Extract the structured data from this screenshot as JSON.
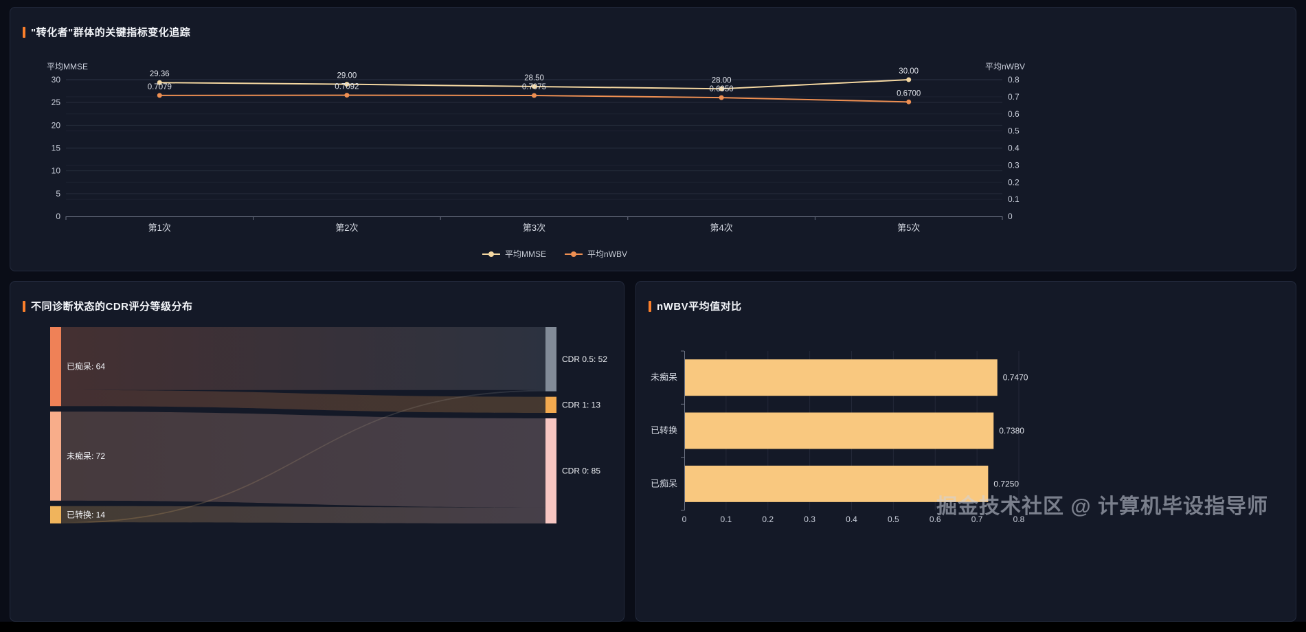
{
  "page": {
    "watermark": "掘金技术社区 @ 计算机毕设指导师",
    "accent_color": "#fb7f2b",
    "background_color": "#0a0d17",
    "panel_color": "#141927"
  },
  "chart_data": [
    {
      "type": "line",
      "title": "\"转化者\"群体的关键指标变化追踪",
      "categories": [
        "第1次",
        "第2次",
        "第3次",
        "第4次",
        "第5次"
      ],
      "series": [
        {
          "name": "平均MMSE",
          "axis": "left",
          "color": "#f4d7a1",
          "values": [
            29.36,
            29.0,
            28.5,
            28.0,
            30.0
          ],
          "labels": [
            "29.36",
            "29.00",
            "28.50",
            "28.00",
            "30.00"
          ]
        },
        {
          "name": "平均nWBV",
          "axis": "right",
          "color": "#ee8f52",
          "values": [
            0.7079,
            0.7092,
            0.7075,
            0.695,
            0.67
          ],
          "labels": [
            "0.7079",
            "0.7092",
            "0.7075",
            "0.6950",
            "0.6700"
          ]
        }
      ],
      "left_axis": {
        "name": "平均MMSE",
        "min": 0,
        "max": 30,
        "ticks": [
          0,
          5,
          10,
          15,
          20,
          25,
          30
        ]
      },
      "right_axis": {
        "name": "平均nWBV",
        "min": 0,
        "max": 0.8,
        "ticks": [
          0,
          0.1,
          0.2,
          0.3,
          0.4,
          0.5,
          0.6,
          0.7,
          0.8
        ]
      },
      "legend": [
        "平均MMSE",
        "平均nWBV"
      ],
      "legend_position": "bottom-center",
      "grid": true
    },
    {
      "type": "sankey",
      "title": "不同诊断状态的CDR评分等级分布",
      "nodes": [
        {
          "name": "已痴呆",
          "label": "已痴呆: 64",
          "value": 64,
          "column": "left",
          "color": "#ef8157"
        },
        {
          "name": "未痴呆",
          "label": "未痴呆: 72",
          "value": 72,
          "column": "left",
          "color": "#f8ad8a"
        },
        {
          "name": "已转换",
          "label": "已转换: 14",
          "value": 14,
          "column": "left",
          "color": "#f0b45c"
        },
        {
          "name": "CDR 0.5",
          "label": "CDR 0.5: 52",
          "value": 52,
          "column": "right",
          "color": "#828b98"
        },
        {
          "name": "CDR 1",
          "label": "CDR 1: 13",
          "value": 13,
          "column": "right",
          "color": "#f2a94f"
        },
        {
          "name": "CDR 0",
          "label": "CDR 0: 85",
          "value": 85,
          "column": "right",
          "color": "#f7c6c2"
        }
      ],
      "links": [
        {
          "source": "已痴呆",
          "target": "CDR 0.5",
          "value": 51
        },
        {
          "source": "已痴呆",
          "target": "CDR 1",
          "value": 13
        },
        {
          "source": "未痴呆",
          "target": "CDR 0",
          "value": 72
        },
        {
          "source": "已转换",
          "target": "CDR 0",
          "value": 13
        },
        {
          "source": "已转换",
          "target": "CDR 0.5",
          "value": 1
        }
      ]
    },
    {
      "type": "bar",
      "title": "nWBV平均值对比",
      "orientation": "horizontal",
      "categories": [
        "未痴呆",
        "已转换",
        "已痴呆"
      ],
      "values": [
        0.747,
        0.738,
        0.725
      ],
      "labels": [
        "0.7470",
        "0.7380",
        "0.7250"
      ],
      "color": "#f9c87f",
      "xlim": [
        0,
        0.8
      ],
      "xticks": [
        0,
        0.1,
        0.2,
        0.3,
        0.4,
        0.5,
        0.6,
        0.7,
        0.8
      ],
      "grid": true
    }
  ]
}
